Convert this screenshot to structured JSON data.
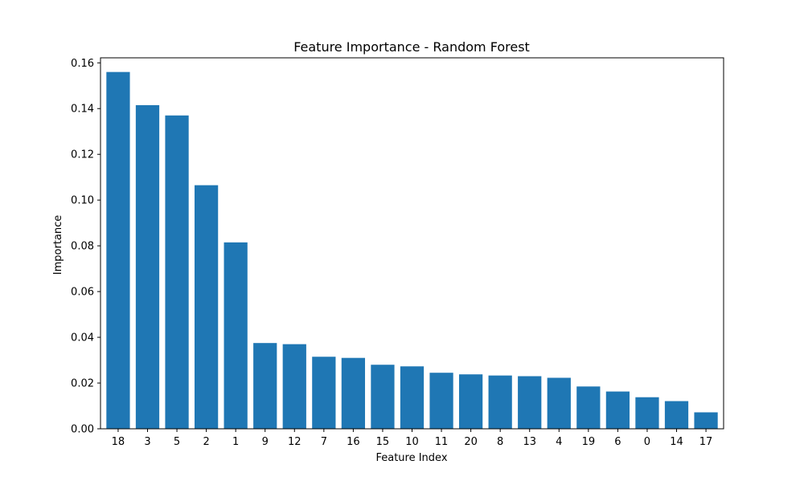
{
  "chart_data": {
    "type": "bar",
    "title": "Feature Importance - Random Forest",
    "xlabel": "Feature Index",
    "ylabel": "Importance",
    "categories": [
      "18",
      "3",
      "5",
      "2",
      "1",
      "9",
      "12",
      "7",
      "16",
      "15",
      "10",
      "11",
      "20",
      "8",
      "13",
      "4",
      "19",
      "6",
      "0",
      "14",
      "17"
    ],
    "values": [
      0.156,
      0.1415,
      0.137,
      0.1065,
      0.0815,
      0.0375,
      0.037,
      0.0315,
      0.031,
      0.028,
      0.0273,
      0.0245,
      0.0238,
      0.0233,
      0.023,
      0.0223,
      0.0185,
      0.0163,
      0.0138,
      0.0121,
      0.0072
    ],
    "ylim": [
      0,
      0.1622
    ],
    "yticks": [
      0.0,
      0.02,
      0.04,
      0.06,
      0.08,
      0.1,
      0.12,
      0.14,
      0.16
    ],
    "ytick_labels": [
      "0.00",
      "0.02",
      "0.04",
      "0.06",
      "0.08",
      "0.10",
      "0.12",
      "0.14",
      "0.16"
    ],
    "grid": false,
    "bar_color": "#1f77b4"
  }
}
